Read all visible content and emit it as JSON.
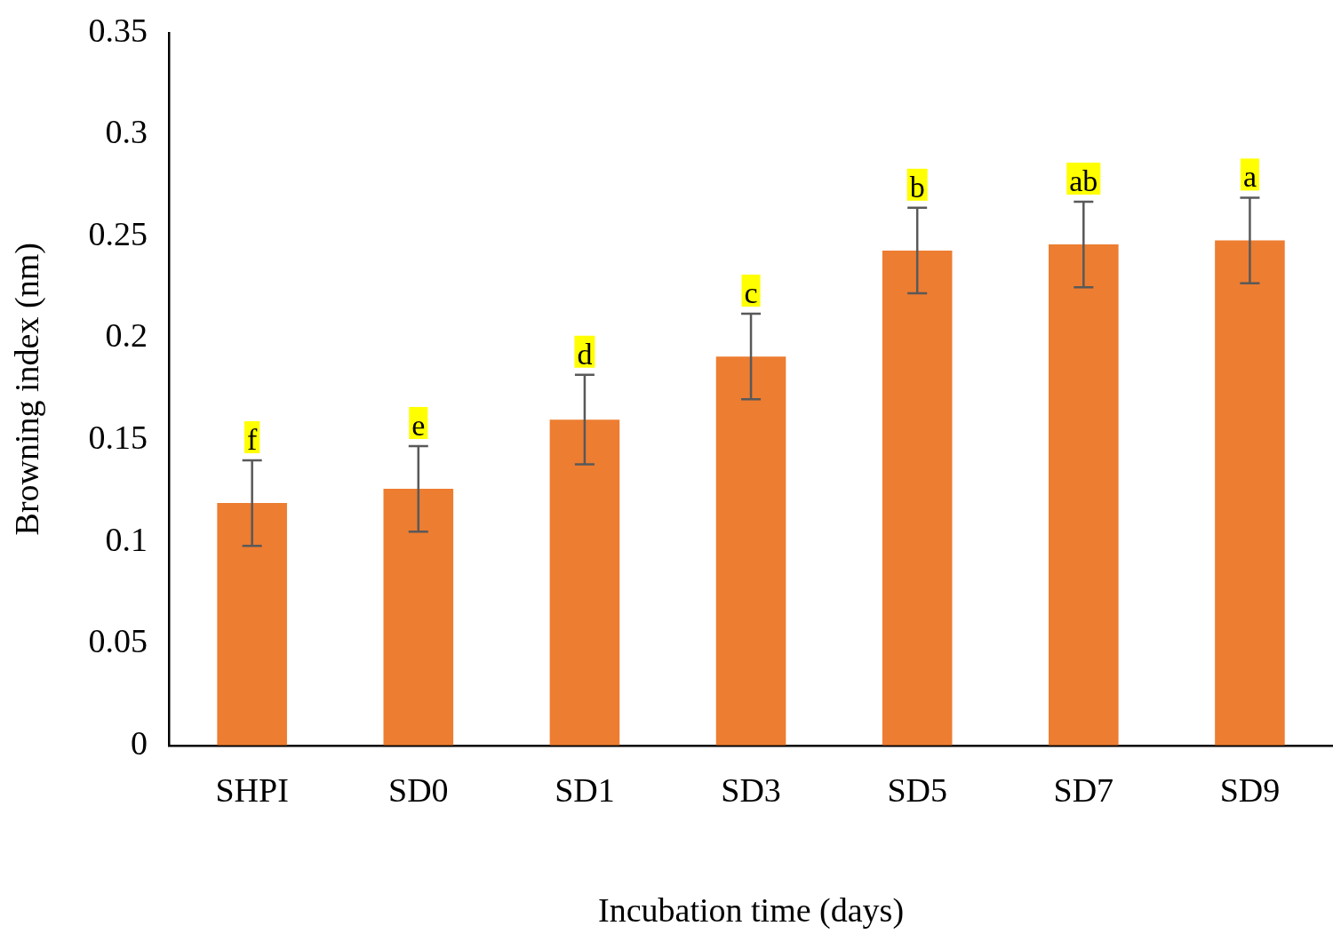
{
  "chart_data": {
    "type": "bar",
    "x_label": "Incubation time (days)",
    "y_label": "Browning index (nm)",
    "categories": [
      "SHPI",
      "SD0",
      "SD1",
      "SD3",
      "SD5",
      "SD7",
      "SD9"
    ],
    "values": [
      0.119,
      0.126,
      0.16,
      0.191,
      0.243,
      0.246,
      0.248
    ],
    "errors": [
      0.021,
      0.021,
      0.022,
      0.021,
      0.021,
      0.021,
      0.021
    ],
    "letters": [
      "f",
      "e",
      "d",
      "c",
      "b",
      "ab",
      "a"
    ],
    "color": "#ed7d31",
    "ylim": [
      0,
      0.35
    ],
    "yticks": [
      0,
      0.05,
      0.1,
      0.15,
      0.2,
      0.25,
      0.3,
      0.35
    ],
    "grid": false
  }
}
